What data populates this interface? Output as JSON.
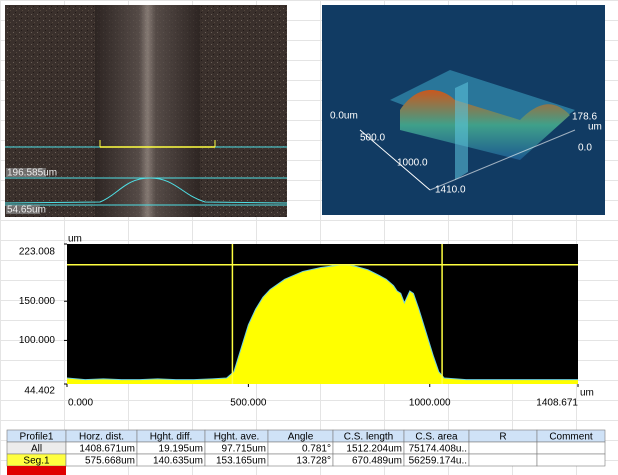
{
  "image_panel": {
    "labels": [
      "196.585um",
      "54.65um"
    ]
  },
  "view_3d": {
    "labels": [
      "0.0um",
      "500.0",
      "1000.0",
      "1410.0",
      "178.6",
      "um",
      "0.0"
    ]
  },
  "profile_chart": {
    "type": "area",
    "y_unit": "um",
    "x_unit": "um",
    "color": "#ffff00",
    "xlim": [
      0,
      1408.671
    ],
    "ylim": [
      44.402,
      223.008
    ],
    "xticks": [
      {
        "value": 0,
        "label": "0.000"
      },
      {
        "value": 500,
        "label": "500.000"
      },
      {
        "value": 1000,
        "label": "1000.000"
      },
      1408.671
    ],
    "yticks": [
      223.008,
      {
        "value": 150,
        "label": "150.000"
      },
      {
        "value": 100,
        "label": "100.000"
      },
      44.402
    ],
    "cursor_x": [
      456,
      1034
    ],
    "cursor_y": 196.585,
    "x": [
      0,
      50,
      100,
      150,
      200,
      250,
      300,
      350,
      400,
      440,
      460,
      480,
      500,
      520,
      540,
      560,
      600,
      650,
      700,
      750,
      780,
      800,
      830,
      860,
      880,
      900,
      910,
      920,
      930,
      945,
      955,
      970,
      990,
      1010,
      1025,
      1040,
      1100,
      1200,
      1300,
      1408.671
    ],
    "values": [
      52,
      50,
      51,
      50,
      50,
      51,
      50,
      50,
      51,
      52,
      60,
      90,
      120,
      140,
      155,
      165,
      178,
      188,
      193,
      196,
      196,
      194,
      190,
      183,
      178,
      170,
      163,
      160,
      148,
      163,
      160,
      140,
      110,
      80,
      60,
      52,
      50,
      50,
      50,
      50
    ]
  },
  "table": {
    "header": [
      "Profile1",
      "Horz. dist.",
      "Hght. diff.",
      "Hght. ave.",
      "Angle",
      "C.S. length",
      "C.S. area",
      "R",
      "Comment"
    ],
    "rows": [
      [
        "All",
        "1408.671um",
        "19.195um",
        "97.715um",
        "0.781°",
        "1512.204um",
        "75174.408u.."
      ],
      [
        "Seg.1",
        "575.668um",
        "140.635um",
        "153.165um",
        "13.728°",
        "670.489um",
        "56259.174u.."
      ]
    ]
  }
}
